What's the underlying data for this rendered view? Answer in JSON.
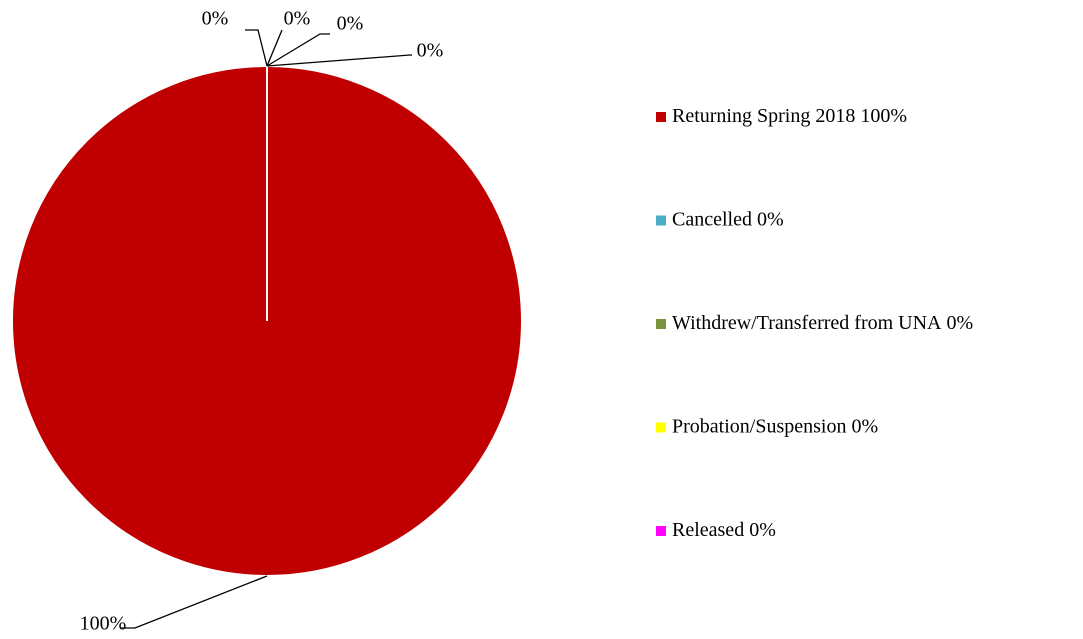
{
  "chart_data": {
    "type": "pie",
    "categories": [
      "Returning Spring 2018",
      "Cancelled",
      "Withdrew/Transferred from UNA",
      "Probation/Suspension",
      "Released"
    ],
    "values": [
      100,
      0,
      0,
      0,
      0
    ],
    "value_labels": [
      "100%",
      "0%",
      "0%",
      "0%",
      "0%"
    ],
    "colors": [
      "#c00000",
      "#4bacc6",
      "#77933c",
      "#ffff00",
      "#ff00ff"
    ],
    "legend": "right"
  }
}
